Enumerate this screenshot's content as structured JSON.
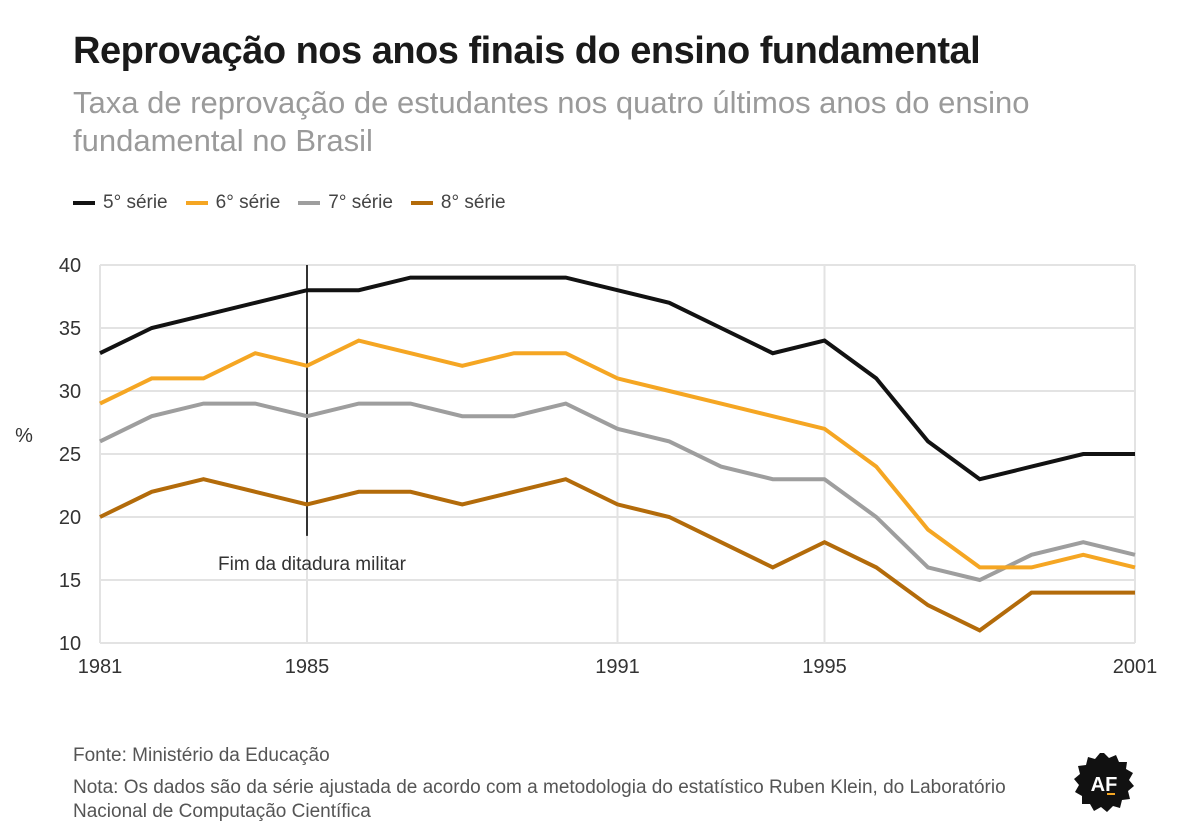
{
  "header": {
    "title": "Reprovação nos anos finais do ensino fundamental",
    "subtitle": "Taxa de reprovação de estudantes nos quatro últimos anos do ensino fundamental no Brasil"
  },
  "footer": {
    "source": "Fonte: Ministério da Educação",
    "note": "Nota: Os dados são da série ajustada de acordo com a metodologia do  estatístico Ruben Klein, do Laboratório Nacional de Computação Científica"
  },
  "logo": {
    "text": "AF",
    "icon": "badge-logo"
  },
  "chart_data": {
    "type": "line",
    "title": "",
    "xlabel": "",
    "ylabel": "%",
    "xlim": [
      1981,
      2001
    ],
    "ylim": [
      10,
      40
    ],
    "x_ticks": [
      1981,
      1985,
      1991,
      1995,
      2001
    ],
    "y_ticks": [
      10,
      15,
      20,
      25,
      30,
      35,
      40
    ],
    "grid": true,
    "legend_position": "top-left",
    "x": [
      1981,
      1982,
      1983,
      1984,
      1985,
      1986,
      1987,
      1988,
      1989,
      1990,
      1991,
      1992,
      1993,
      1994,
      1995,
      1996,
      1997,
      1998,
      1999,
      2000,
      2001
    ],
    "series": [
      {
        "name": "5° série",
        "color": "#121212",
        "values": [
          33,
          35,
          36,
          37,
          38,
          38,
          39,
          39,
          39,
          39,
          38,
          37,
          35,
          33,
          34,
          31,
          26,
          23,
          24,
          25,
          25
        ]
      },
      {
        "name": "6° série",
        "color": "#f5a623",
        "values": [
          29,
          31,
          31,
          33,
          32,
          34,
          33,
          32,
          33,
          33,
          31,
          30,
          29,
          28,
          27,
          24,
          19,
          16,
          16,
          17,
          16
        ]
      },
      {
        "name": "7° série",
        "color": "#9e9e9e",
        "values": [
          26,
          28,
          29,
          29,
          28,
          29,
          29,
          28,
          28,
          29,
          27,
          26,
          24,
          23,
          23,
          20,
          16,
          15,
          17,
          18,
          17
        ]
      },
      {
        "name": "8° série",
        "color": "#b36b0a",
        "values": [
          20,
          22,
          23,
          22,
          21,
          22,
          22,
          21,
          22,
          23,
          21,
          20,
          18,
          16,
          18,
          16,
          13,
          11,
          14,
          14,
          14
        ]
      }
    ],
    "annotations": [
      {
        "x": 1985,
        "y_from": 18.5,
        "y_to": 40,
        "label": "Fim da ditadura militar"
      }
    ]
  }
}
